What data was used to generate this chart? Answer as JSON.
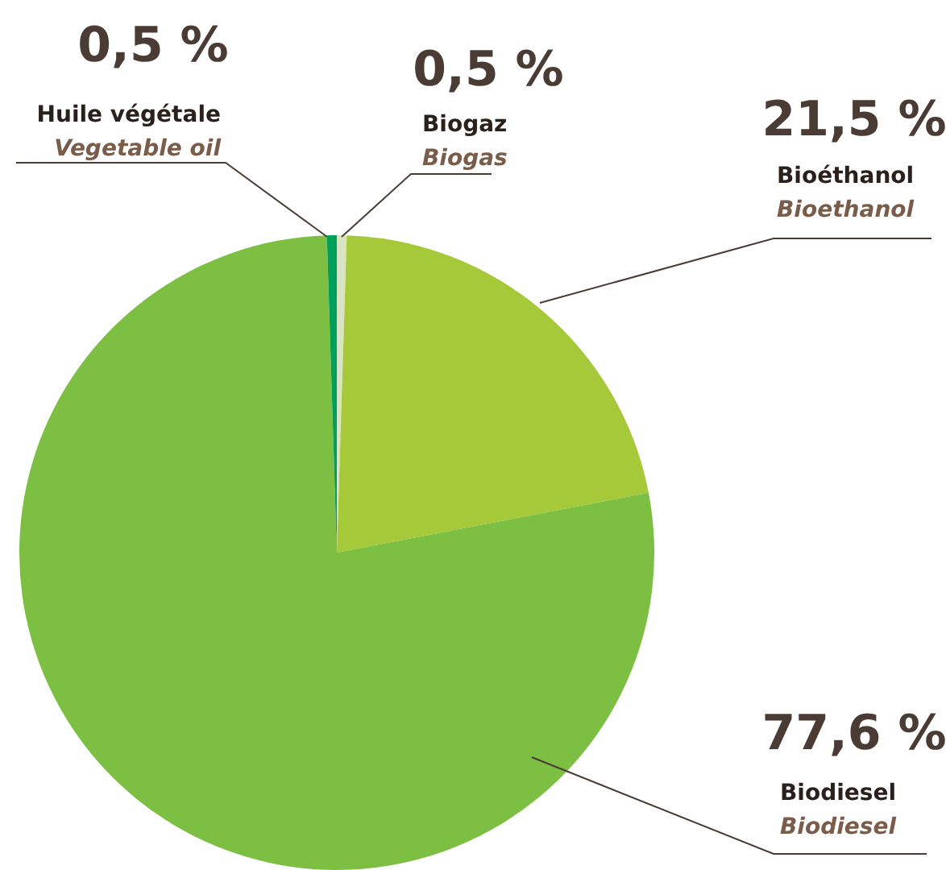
{
  "chart_data": {
    "type": "pie",
    "categories": [
      "Biogaz\nBiogas",
      "Bioéthanol\nBioethanol",
      "Biodiesel\nBiodiesel",
      "Huile végétale\nVegetable oil"
    ],
    "values": [
      0.5,
      21.5,
      77.6,
      0.5
    ],
    "colors": [
      "#d9e4c4",
      "#a6c93a",
      "#7cbf42",
      "#00a05a"
    ],
    "value_labels": [
      "0,5 %",
      "21,5 %",
      "77,6 %",
      "0,5 %"
    ],
    "legend": false
  }
}
